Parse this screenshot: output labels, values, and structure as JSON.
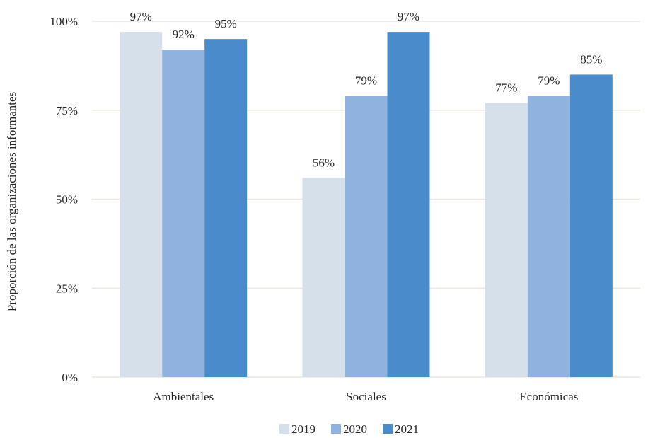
{
  "chart_data": {
    "type": "bar",
    "title": "",
    "xlabel": "",
    "ylabel": "Proporción de las organizaciones informantes",
    "categories": [
      "Ambientales",
      "Sociales",
      "Económicas"
    ],
    "series": [
      {
        "name": "2019",
        "values": [
          97,
          56,
          77
        ],
        "labels": [
          "97%",
          "56%",
          "77%"
        ],
        "color": "#d6e0ea"
      },
      {
        "name": "2020",
        "values": [
          92,
          79,
          79
        ],
        "labels": [
          "92%",
          "79%",
          "79%"
        ],
        "color": "#90b2df"
      },
      {
        "name": "2021",
        "values": [
          95,
          97,
          85
        ],
        "labels": [
          "95%",
          "97%",
          "85%"
        ],
        "color": "#4a8ccb"
      }
    ],
    "ylim": [
      0,
      100
    ],
    "yticks": [
      0,
      25,
      50,
      75,
      100
    ],
    "ytick_labels": [
      "0%",
      "25%",
      "50%",
      "75%",
      "100%"
    ],
    "grid": true,
    "gridline_color": "#ebe8dc",
    "legend_position": "bottom"
  }
}
